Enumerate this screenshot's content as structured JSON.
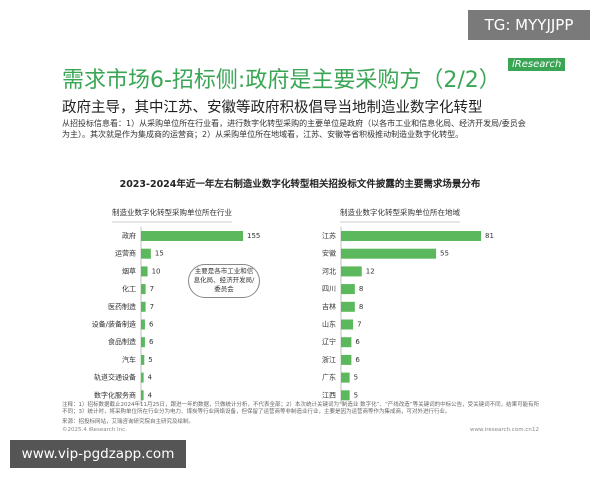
{
  "watermark_top": "TG: MYYJJPP",
  "logo": "iResearch",
  "header": {
    "title": "需求市场6-招标侧:政府是主要采购方（2/2）",
    "subtitle": "政府主导，其中江苏、安徽等政府积极倡导当地制造业数字化转型",
    "summary": "从招投标信息看：1）从采购单位所在行业看，进行数字化转型采购的主要单位是政府（以各市工业和信息化局、经济开发局/委员会为主）。其次就是作为集成商的运营商；2）从采购单位所在地域看，江苏、安徽等省积极推动制造业数字化转型。"
  },
  "figure_title": "2023-2024年近一年左右制造业数字化转型相关招投标文件披露的主要需求场景分布",
  "chart_data": [
    {
      "type": "bar",
      "orientation": "horizontal",
      "title": "制造业数字化转型采购单位所在行业",
      "categories": [
        "政府",
        "运营商",
        "烟草",
        "化工",
        "医药制造",
        "设备/装备制造",
        "食品制造",
        "汽车",
        "轨道交通设备",
        "数字化服务商"
      ],
      "values": [
        155,
        15,
        10,
        7,
        7,
        6,
        6,
        5,
        4,
        4
      ],
      "color": "#5cb85c",
      "annotation": "主要是各市工业和信息化局、经济开发局/委员会"
    },
    {
      "type": "bar",
      "orientation": "horizontal",
      "title": "制造业数字化转型采购单位所在地域",
      "categories": [
        "江苏",
        "安徽",
        "河北",
        "四川",
        "吉林",
        "山东",
        "辽宁",
        "浙江",
        "广东",
        "江西"
      ],
      "values": [
        81,
        55,
        12,
        8,
        8,
        7,
        6,
        6,
        5,
        5
      ],
      "color": "#5cb85c"
    }
  ],
  "footer": {
    "note": "注释：1）招标数据截止2024年11月25日，跟进一年的数据，只做统计分析，不代表全部；2）本次统计关键词为“制造业 数字化”、“产线改造”等关键词的中标公告，受关键词不同，结果可能有所不同；3）统计时，将采购单位所在行业分为电力、煤炭等行业网络设备，但保留了运营商等非制造业行业，主要是因为运营商等作为集成商，可对外进行行业。",
    "source": "来源：招投标网站，艾瑞咨询研究院自主研究及绘制。",
    "copyright": "©2025.4 iResearch Inc.",
    "website": "www.iresearch.com.cn",
    "page": "12"
  },
  "watermark_bottom": "www.vip-pgdzapp.com"
}
